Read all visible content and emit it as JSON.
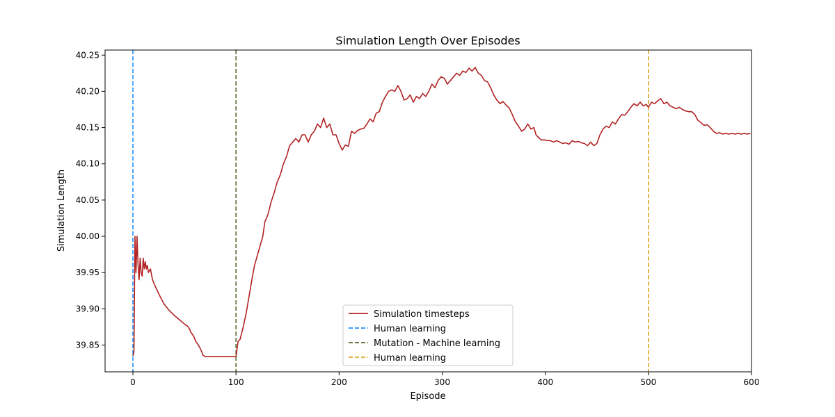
{
  "chart_data": {
    "type": "line",
    "title": "Simulation Length Over Episodes",
    "xlabel": "Episode",
    "ylabel": "Simulation Length",
    "xlim": [
      -27,
      600
    ],
    "ylim": [
      39.813,
      40.257
    ],
    "x_ticks": [
      0,
      100,
      200,
      300,
      400,
      500,
      600
    ],
    "y_ticks": [
      39.85,
      39.9,
      39.95,
      40.0,
      40.05,
      40.1,
      40.15,
      40.2,
      40.25
    ],
    "x_tick_labels": [
      "0",
      "100",
      "200",
      "300",
      "400",
      "500",
      "600"
    ],
    "y_tick_labels": [
      "39.85",
      "39.90",
      "39.95",
      "40.00",
      "40.05",
      "40.10",
      "40.15",
      "40.20",
      "40.25"
    ],
    "grid": false,
    "legend_position": "bottom-center",
    "series": [
      {
        "name": "Simulation timesteps",
        "color": "#b22222",
        "style": "solid",
        "points": [
          [
            0,
            39.835
          ],
          [
            1,
            39.84
          ],
          [
            2,
            40.0
          ],
          [
            3,
            39.95
          ],
          [
            4,
            40.0
          ],
          [
            5,
            39.96
          ],
          [
            6,
            39.94
          ],
          [
            7,
            39.97
          ],
          [
            8,
            39.95
          ],
          [
            9,
            39.945
          ],
          [
            10,
            39.97
          ],
          [
            11,
            39.955
          ],
          [
            12,
            39.965
          ],
          [
            13,
            39.955
          ],
          [
            14,
            39.96
          ],
          [
            15,
            39.95
          ],
          [
            17,
            39.955
          ],
          [
            19,
            39.94
          ],
          [
            22,
            39.93
          ],
          [
            26,
            39.918
          ],
          [
            30,
            39.907
          ],
          [
            35,
            39.898
          ],
          [
            40,
            39.891
          ],
          [
            45,
            39.885
          ],
          [
            50,
            39.879
          ],
          [
            53,
            39.876
          ],
          [
            55,
            39.872
          ],
          [
            56,
            39.868
          ],
          [
            57,
            39.866
          ],
          [
            59,
            39.862
          ],
          [
            61,
            39.855
          ],
          [
            63,
            39.851
          ],
          [
            65,
            39.846
          ],
          [
            67,
            39.84
          ],
          [
            68,
            39.836
          ],
          [
            70,
            39.834
          ],
          [
            80,
            39.834
          ],
          [
            90,
            39.834
          ],
          [
            99,
            39.834
          ],
          [
            100,
            39.834
          ],
          [
            102,
            39.855
          ],
          [
            104,
            39.858
          ],
          [
            107,
            39.875
          ],
          [
            110,
            39.895
          ],
          [
            113,
            39.92
          ],
          [
            116,
            39.945
          ],
          [
            118,
            39.96
          ],
          [
            120,
            39.97
          ],
          [
            123,
            39.985
          ],
          [
            126,
            40.0
          ],
          [
            128,
            40.02
          ],
          [
            131,
            40.03
          ],
          [
            134,
            40.047
          ],
          [
            137,
            40.06
          ],
          [
            140,
            40.075
          ],
          [
            143,
            40.085
          ],
          [
            146,
            40.1
          ],
          [
            149,
            40.11
          ],
          [
            152,
            40.125
          ],
          [
            155,
            40.13
          ],
          [
            158,
            40.135
          ],
          [
            161,
            40.13
          ],
          [
            164,
            40.14
          ],
          [
            167,
            40.14
          ],
          [
            170,
            40.13
          ],
          [
            173,
            40.14
          ],
          [
            176,
            40.145
          ],
          [
            179,
            40.155
          ],
          [
            182,
            40.15
          ],
          [
            185,
            40.163
          ],
          [
            188,
            40.15
          ],
          [
            191,
            40.155
          ],
          [
            194,
            40.14
          ],
          [
            197,
            40.14
          ],
          [
            200,
            40.128
          ],
          [
            203,
            40.119
          ],
          [
            206,
            40.126
          ],
          [
            209,
            40.124
          ],
          [
            212,
            40.145
          ],
          [
            215,
            40.142
          ],
          [
            218,
            40.146
          ],
          [
            221,
            40.148
          ],
          [
            224,
            40.149
          ],
          [
            227,
            40.155
          ],
          [
            230,
            40.162
          ],
          [
            233,
            40.158
          ],
          [
            236,
            40.17
          ],
          [
            239,
            40.172
          ],
          [
            242,
            40.185
          ],
          [
            245,
            40.193
          ],
          [
            248,
            40.2
          ],
          [
            251,
            40.202
          ],
          [
            254,
            40.2
          ],
          [
            257,
            40.208
          ],
          [
            260,
            40.2
          ],
          [
            263,
            40.188
          ],
          [
            266,
            40.19
          ],
          [
            269,
            40.195
          ],
          [
            272,
            40.185
          ],
          [
            275,
            40.193
          ],
          [
            278,
            40.19
          ],
          [
            281,
            40.197
          ],
          [
            284,
            40.193
          ],
          [
            287,
            40.2
          ],
          [
            290,
            40.21
          ],
          [
            293,
            40.205
          ],
          [
            296,
            40.215
          ],
          [
            299,
            40.22
          ],
          [
            302,
            40.218
          ],
          [
            305,
            40.21
          ],
          [
            308,
            40.215
          ],
          [
            311,
            40.22
          ],
          [
            314,
            40.225
          ],
          [
            317,
            40.222
          ],
          [
            320,
            40.228
          ],
          [
            323,
            40.226
          ],
          [
            326,
            40.232
          ],
          [
            329,
            40.228
          ],
          [
            332,
            40.233
          ],
          [
            335,
            40.225
          ],
          [
            338,
            40.222
          ],
          [
            341,
            40.215
          ],
          [
            344,
            40.213
          ],
          [
            347,
            40.205
          ],
          [
            350,
            40.195
          ],
          [
            353,
            40.188
          ],
          [
            356,
            40.183
          ],
          [
            359,
            40.186
          ],
          [
            362,
            40.181
          ],
          [
            365,
            40.177
          ],
          [
            368,
            40.168
          ],
          [
            371,
            40.158
          ],
          [
            374,
            40.152
          ],
          [
            377,
            40.145
          ],
          [
            380,
            40.148
          ],
          [
            383,
            40.155
          ],
          [
            386,
            40.148
          ],
          [
            389,
            40.15
          ],
          [
            391,
            40.14
          ],
          [
            393,
            40.137
          ],
          [
            396,
            40.133
          ],
          [
            399,
            40.133
          ],
          [
            402,
            40.132
          ],
          [
            405,
            40.132
          ],
          [
            408,
            40.13
          ],
          [
            411,
            40.132
          ],
          [
            414,
            40.13
          ],
          [
            417,
            40.128
          ],
          [
            420,
            40.129
          ],
          [
            423,
            40.127
          ],
          [
            426,
            40.132
          ],
          [
            429,
            40.13
          ],
          [
            432,
            40.131
          ],
          [
            435,
            40.129
          ],
          [
            438,
            40.128
          ],
          [
            441,
            40.125
          ],
          [
            444,
            40.13
          ],
          [
            447,
            40.125
          ],
          [
            450,
            40.128
          ],
          [
            453,
            40.14
          ],
          [
            456,
            40.148
          ],
          [
            459,
            40.152
          ],
          [
            462,
            40.15
          ],
          [
            465,
            40.158
          ],
          [
            468,
            40.155
          ],
          [
            471,
            40.162
          ],
          [
            474,
            40.168
          ],
          [
            477,
            40.167
          ],
          [
            480,
            40.172
          ],
          [
            483,
            40.178
          ],
          [
            486,
            40.183
          ],
          [
            489,
            40.18
          ],
          [
            492,
            40.185
          ],
          [
            495,
            40.18
          ],
          [
            498,
            40.182
          ],
          [
            500,
            40.178
          ],
          [
            503,
            40.185
          ],
          [
            506,
            40.183
          ],
          [
            509,
            40.187
          ],
          [
            512,
            40.19
          ],
          [
            515,
            40.183
          ],
          [
            518,
            40.185
          ],
          [
            521,
            40.18
          ],
          [
            524,
            40.178
          ],
          [
            527,
            40.176
          ],
          [
            530,
            40.178
          ],
          [
            533,
            40.175
          ],
          [
            536,
            40.173
          ],
          [
            539,
            40.172
          ],
          [
            542,
            40.172
          ],
          [
            545,
            40.168
          ],
          [
            548,
            40.16
          ],
          [
            551,
            40.157
          ],
          [
            554,
            40.153
          ],
          [
            557,
            40.154
          ],
          [
            560,
            40.15
          ],
          [
            563,
            40.145
          ],
          [
            566,
            40.142
          ],
          [
            569,
            40.143
          ],
          [
            572,
            40.141
          ],
          [
            575,
            40.142
          ],
          [
            578,
            40.141
          ],
          [
            581,
            40.142
          ],
          [
            584,
            40.141
          ],
          [
            587,
            40.142
          ],
          [
            590,
            40.141
          ],
          [
            593,
            40.142
          ],
          [
            596,
            40.141
          ],
          [
            599,
            40.142
          ]
        ]
      }
    ],
    "vlines": [
      {
        "name": "Human learning",
        "x": 0,
        "color": "#1e90ff",
        "style": "dashed"
      },
      {
        "name": "Mutation - Machine learning",
        "x": 100,
        "color": "#556b2f",
        "style": "dashed"
      },
      {
        "name": "Human learning",
        "x": 500,
        "color": "#daa520",
        "style": "dashed"
      }
    ],
    "legend": [
      {
        "label": "Simulation timesteps",
        "color": "#b22222",
        "style": "solid"
      },
      {
        "label": "Human learning",
        "color": "#1e90ff",
        "style": "dashed"
      },
      {
        "label": "Mutation - Machine learning",
        "color": "#556b2f",
        "style": "dashed"
      },
      {
        "label": "Human learning",
        "color": "#daa520",
        "style": "dashed"
      }
    ]
  }
}
